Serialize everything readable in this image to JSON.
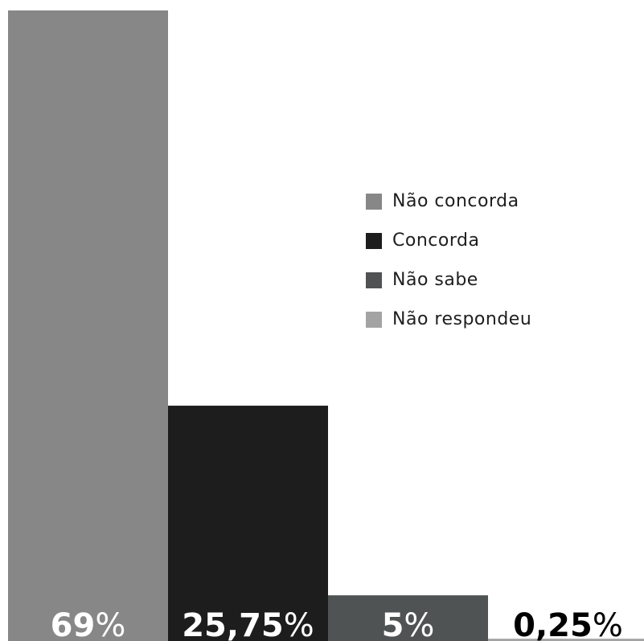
{
  "chart_data": {
    "type": "bar",
    "categories": [
      "Não concorda",
      "Concorda",
      "Não sabe",
      "Não respondeu"
    ],
    "values": [
      69,
      25.75,
      5,
      0.25
    ],
    "value_labels": [
      "69",
      "25,75",
      "5",
      "0,25"
    ],
    "value_suffix": "%",
    "colors": [
      "#878787",
      "#1d1d1d",
      "#505354",
      "#a3a3a3"
    ],
    "label_colors": [
      "#ffffff",
      "#ffffff",
      "#ffffff",
      "#000000"
    ],
    "ylim": [
      0,
      69
    ],
    "legend": {
      "position": "right",
      "items": [
        {
          "label": "Não concorda",
          "color": "#878787"
        },
        {
          "label": "Concorda",
          "color": "#1d1d1d"
        },
        {
          "label": "Não sabe",
          "color": "#505354"
        },
        {
          "label": "Não respondeu",
          "color": "#a3a3a3"
        }
      ]
    },
    "title": "",
    "xlabel": "",
    "ylabel": "",
    "grid": false
  }
}
